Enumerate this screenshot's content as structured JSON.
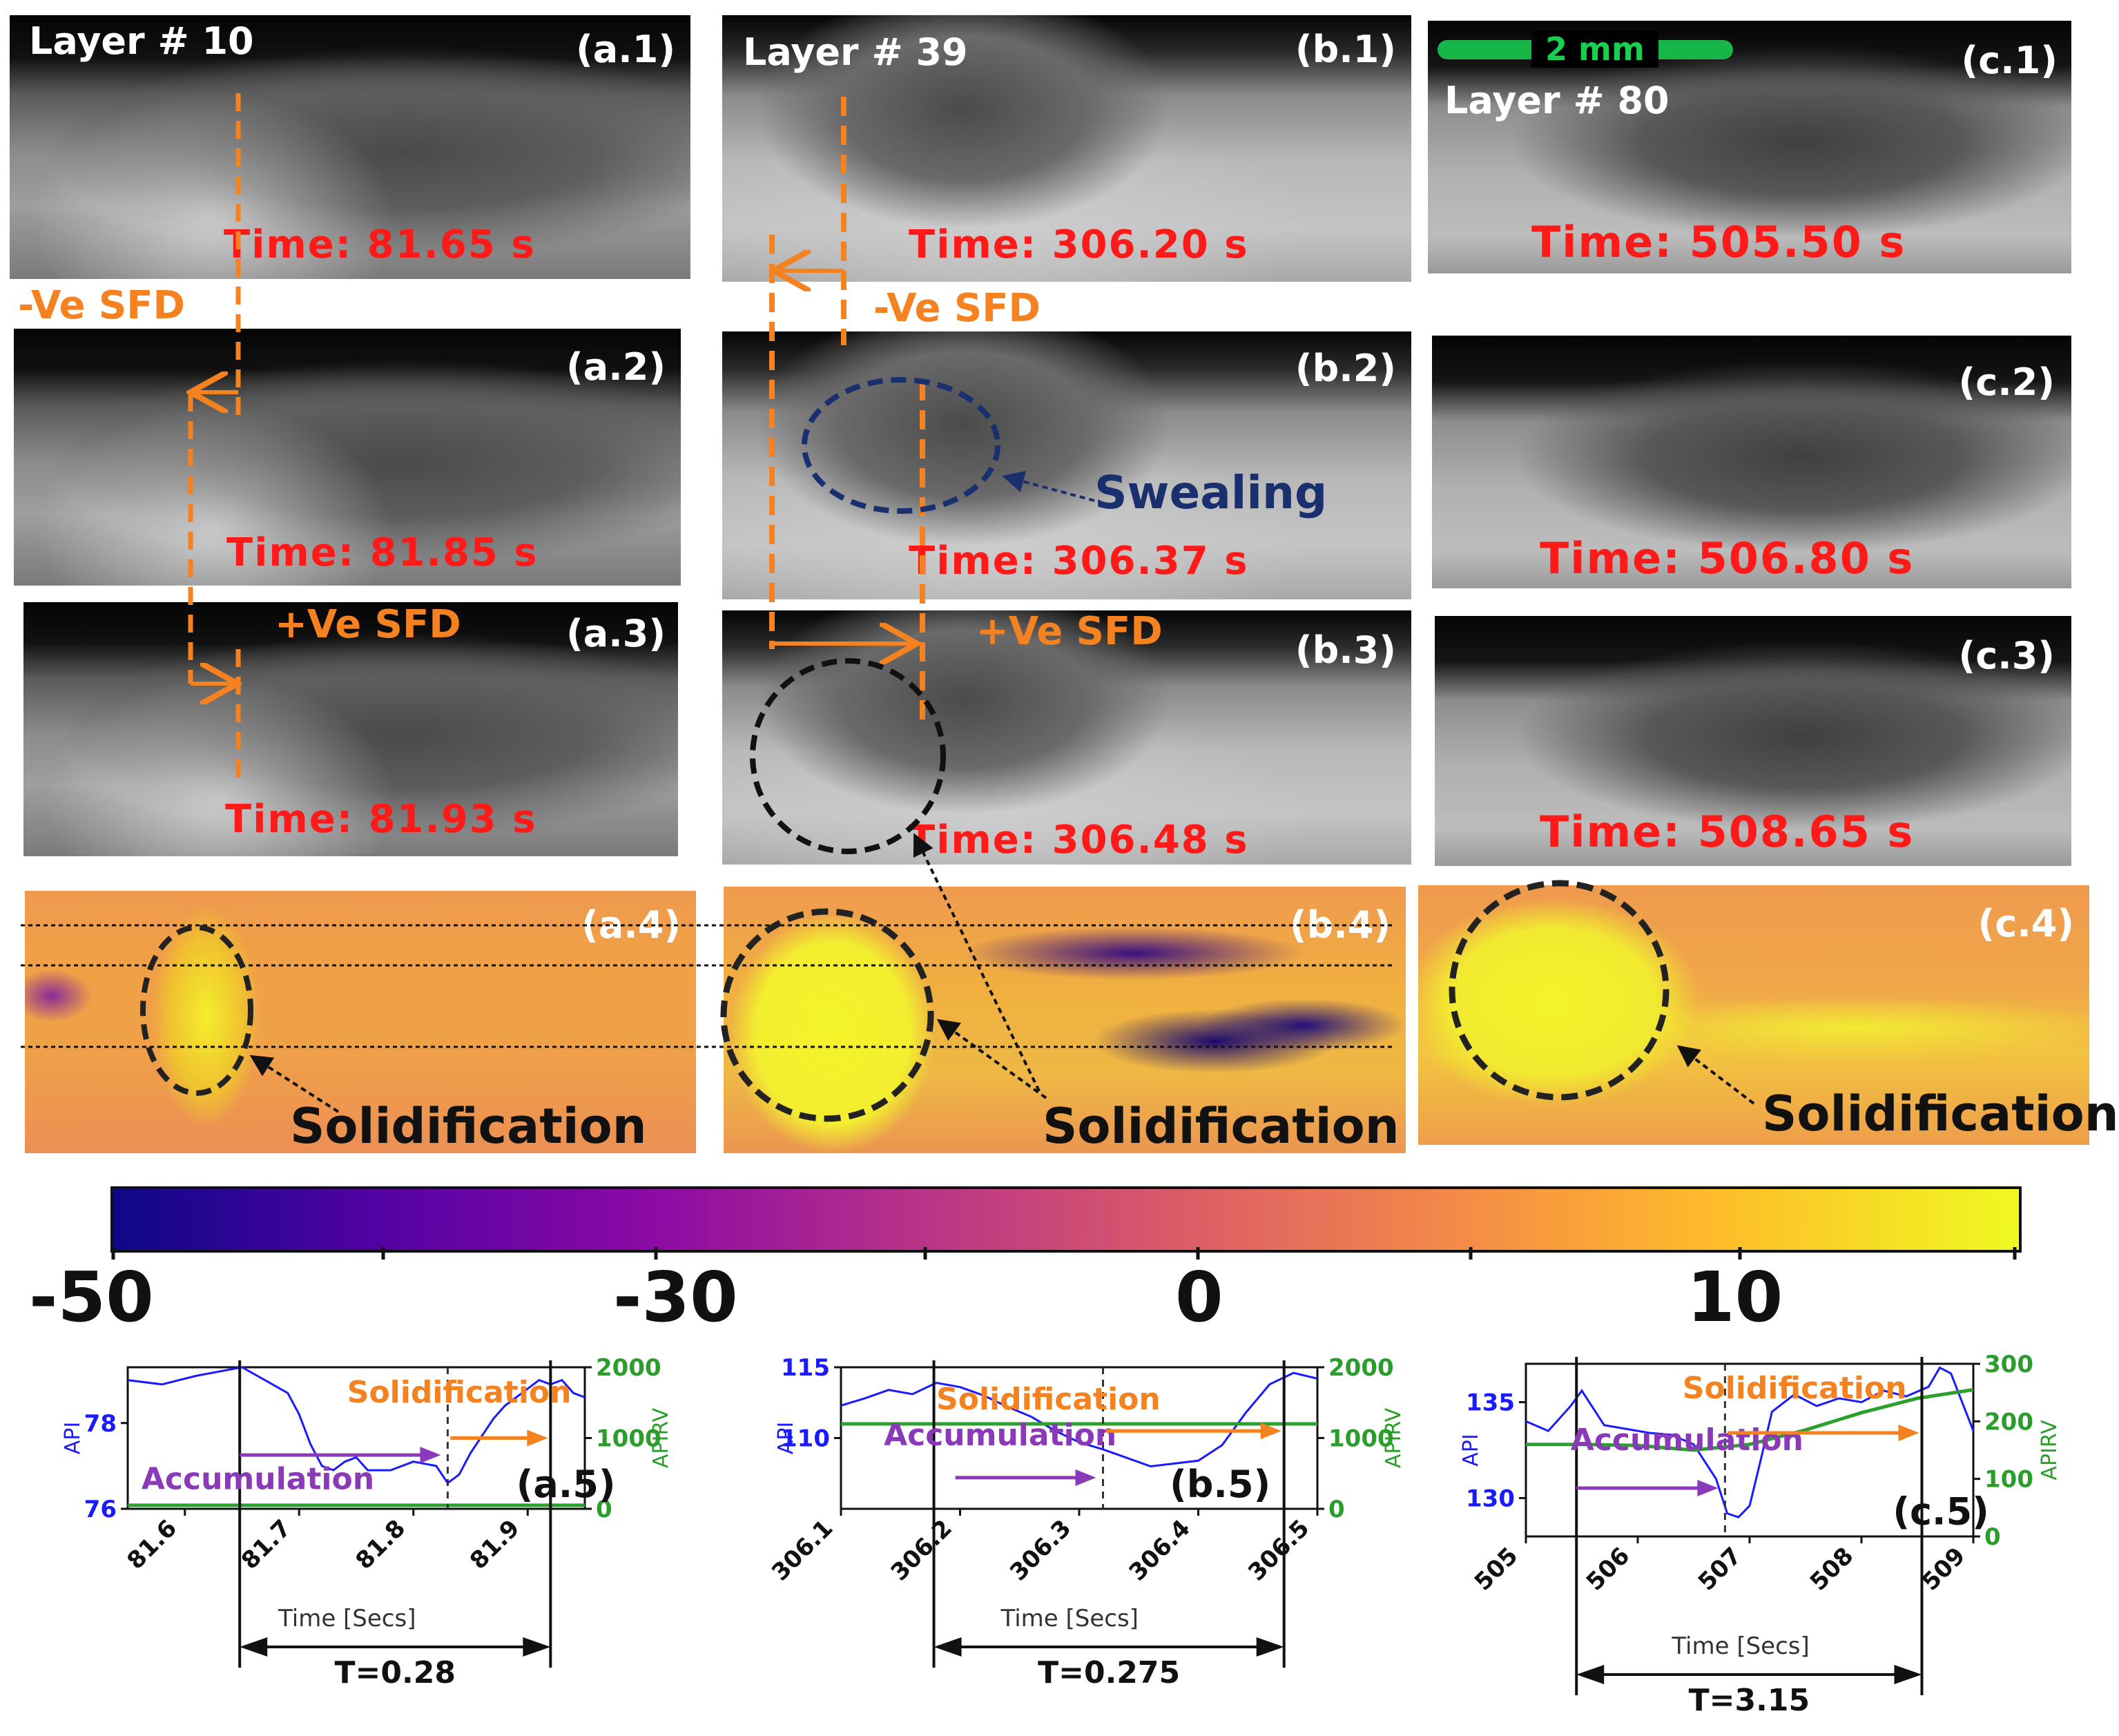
{
  "figure": {
    "columns": [
      {
        "id": "a",
        "layer": "Layer # 10",
        "frames": [
          {
            "label": "(a.1)",
            "time": "Time: 81.65 s"
          },
          {
            "label": "(a.2)",
            "time": "Time: 81.85 s"
          },
          {
            "label": "(a.3)",
            "time": "Time: 81.93 s"
          }
        ],
        "map_label": "(a.4)",
        "map_annotation": "Solidification",
        "neg_sfd": "-Ve SFD",
        "pos_sfd": "+Ve SFD"
      },
      {
        "id": "b",
        "layer": "Layer # 39",
        "frames": [
          {
            "label": "(b.1)",
            "time": "Time: 306.20 s"
          },
          {
            "label": "(b.2)",
            "time": "Time: 306.37 s"
          },
          {
            "label": "(b.3)",
            "time": "Time: 306.48 s"
          }
        ],
        "map_label": "(b.4)",
        "map_annotation": "Solidification",
        "neg_sfd": "-Ve SFD",
        "pos_sfd": "+Ve SFD",
        "swelling": "Swealing"
      },
      {
        "id": "c",
        "layer": "Layer # 80",
        "scale_bar": "2 mm",
        "frames": [
          {
            "label": "(c.1)",
            "time": "Time: 505.50 s"
          },
          {
            "label": "(c.2)",
            "time": "Time: 506.80 s"
          },
          {
            "label": "(c.3)",
            "time": "Time: 508.65 s"
          }
        ],
        "map_label": "(c.4)",
        "map_annotation": "Solidification"
      }
    ],
    "colorbar": {
      "ticks": [
        "-50",
        "-30",
        "0",
        "10"
      ],
      "colors": [
        "#0d0887",
        "#6a00a8",
        "#b12a90",
        "#e16462",
        "#fca636",
        "#f0f921"
      ]
    }
  },
  "chart_data": [
    {
      "type": "line",
      "panel": "(a.5)",
      "xlabel": "Time [Secs]",
      "ylabel": "API",
      "ylabel_right": "APIRV",
      "xticks": [
        "81.6",
        "81.7",
        "81.8",
        "81.9"
      ],
      "yticks": [
        "76",
        "78"
      ],
      "yticks_right": [
        "0",
        "1000",
        "2000"
      ],
      "xlim": [
        81.55,
        81.95
      ],
      "ylim": [
        76,
        79.3
      ],
      "ylim_right": [
        0,
        2000
      ],
      "series": [
        {
          "name": "API",
          "color": "#1a1aff",
          "x": [
            81.55,
            81.58,
            81.61,
            81.63,
            81.65,
            81.67,
            81.69,
            81.7,
            81.71,
            81.72,
            81.73,
            81.74,
            81.75,
            81.76,
            81.78,
            81.8,
            81.82,
            81.83,
            81.84,
            81.85,
            81.86,
            81.87,
            81.88,
            81.89,
            81.9,
            81.91,
            81.92,
            81.93,
            81.94,
            81.95
          ],
          "y": [
            79.0,
            78.9,
            79.1,
            79.2,
            79.3,
            79.0,
            78.7,
            78.2,
            77.5,
            77.0,
            76.9,
            77.1,
            77.2,
            76.9,
            76.9,
            77.1,
            77.0,
            76.6,
            76.8,
            77.3,
            77.7,
            78.1,
            78.4,
            78.6,
            78.8,
            79.0,
            78.9,
            79.0,
            78.7,
            78.6
          ]
        },
        {
          "name": "APIRV",
          "color": "#2ca02c",
          "axis": "right",
          "x": [
            81.55,
            81.95
          ],
          "y": [
            50,
            50
          ]
        }
      ],
      "annotations": {
        "accumulation": "Accumulation",
        "solidification": "Solidification",
        "period": "T=0.28"
      }
    },
    {
      "type": "line",
      "panel": "(b.5)",
      "xlabel": "Time [Secs]",
      "ylabel": "API",
      "ylabel_right": "APIRV",
      "xticks": [
        "306.1",
        "306.2",
        "306.3",
        "306.4",
        "306.5"
      ],
      "yticks": [
        "110",
        "115"
      ],
      "yticks_right": [
        "0",
        "1000",
        "2000"
      ],
      "xlim": [
        306.1,
        306.5
      ],
      "ylim": [
        105,
        115
      ],
      "ylim_right": [
        0,
        2000
      ],
      "series": [
        {
          "name": "API",
          "color": "#1a1aff",
          "x": [
            306.1,
            306.12,
            306.14,
            306.16,
            306.18,
            306.2,
            306.22,
            306.24,
            306.26,
            306.28,
            306.3,
            306.32,
            306.34,
            306.36,
            306.38,
            306.4,
            306.42,
            306.44,
            306.46,
            306.48,
            306.5
          ],
          "y": [
            112.3,
            112.8,
            113.4,
            113.1,
            113.9,
            113.6,
            113.0,
            112.2,
            111.5,
            110.5,
            109.7,
            109.2,
            108.6,
            108.0,
            108.2,
            108.4,
            109.5,
            111.8,
            113.8,
            114.6,
            114.2
          ]
        },
        {
          "name": "APIRV",
          "color": "#2ca02c",
          "axis": "right",
          "x": [
            306.1,
            306.5
          ],
          "y": [
            1200,
            1200
          ]
        }
      ],
      "annotations": {
        "accumulation": "Accumulation",
        "solidification": "Solidification",
        "period": "T=0.275"
      }
    },
    {
      "type": "line",
      "panel": "(c.5)",
      "xlabel": "Time [Secs]",
      "ylabel": "API",
      "ylabel_right": "APIRV",
      "xticks": [
        "505",
        "506",
        "507",
        "508",
        "509"
      ],
      "yticks": [
        "130",
        "135"
      ],
      "yticks_right": [
        "0",
        "100",
        "200",
        "300"
      ],
      "xlim": [
        505,
        509
      ],
      "ylim": [
        128,
        137
      ],
      "ylim_right": [
        0,
        300
      ],
      "series": [
        {
          "name": "API",
          "color": "#1a1aff",
          "x": [
            505.0,
            505.2,
            505.4,
            505.5,
            505.7,
            505.9,
            506.1,
            506.3,
            506.5,
            506.7,
            506.8,
            506.9,
            507.0,
            507.1,
            507.2,
            507.4,
            507.6,
            507.8,
            508.0,
            508.2,
            508.4,
            508.6,
            508.7,
            508.8,
            509.0
          ],
          "y": [
            134.0,
            133.5,
            134.8,
            135.6,
            133.8,
            133.6,
            133.4,
            133.3,
            132.8,
            131.0,
            129.2,
            129.0,
            129.6,
            132.0,
            134.5,
            135.4,
            134.8,
            135.2,
            135.0,
            135.6,
            135.3,
            135.8,
            136.8,
            136.5,
            133.5
          ]
        },
        {
          "name": "APIRV",
          "color": "#2ca02c",
          "axis": "right",
          "x": [
            505.0,
            505.5,
            506.0,
            506.5,
            507.0,
            507.5,
            508.0,
            508.5,
            509.0
          ],
          "y": [
            160,
            160,
            158,
            150,
            160,
            185,
            215,
            240,
            255
          ]
        }
      ],
      "annotations": {
        "accumulation": "Accumulation",
        "solidification": "Solidification",
        "period": "T=3.15"
      }
    }
  ]
}
